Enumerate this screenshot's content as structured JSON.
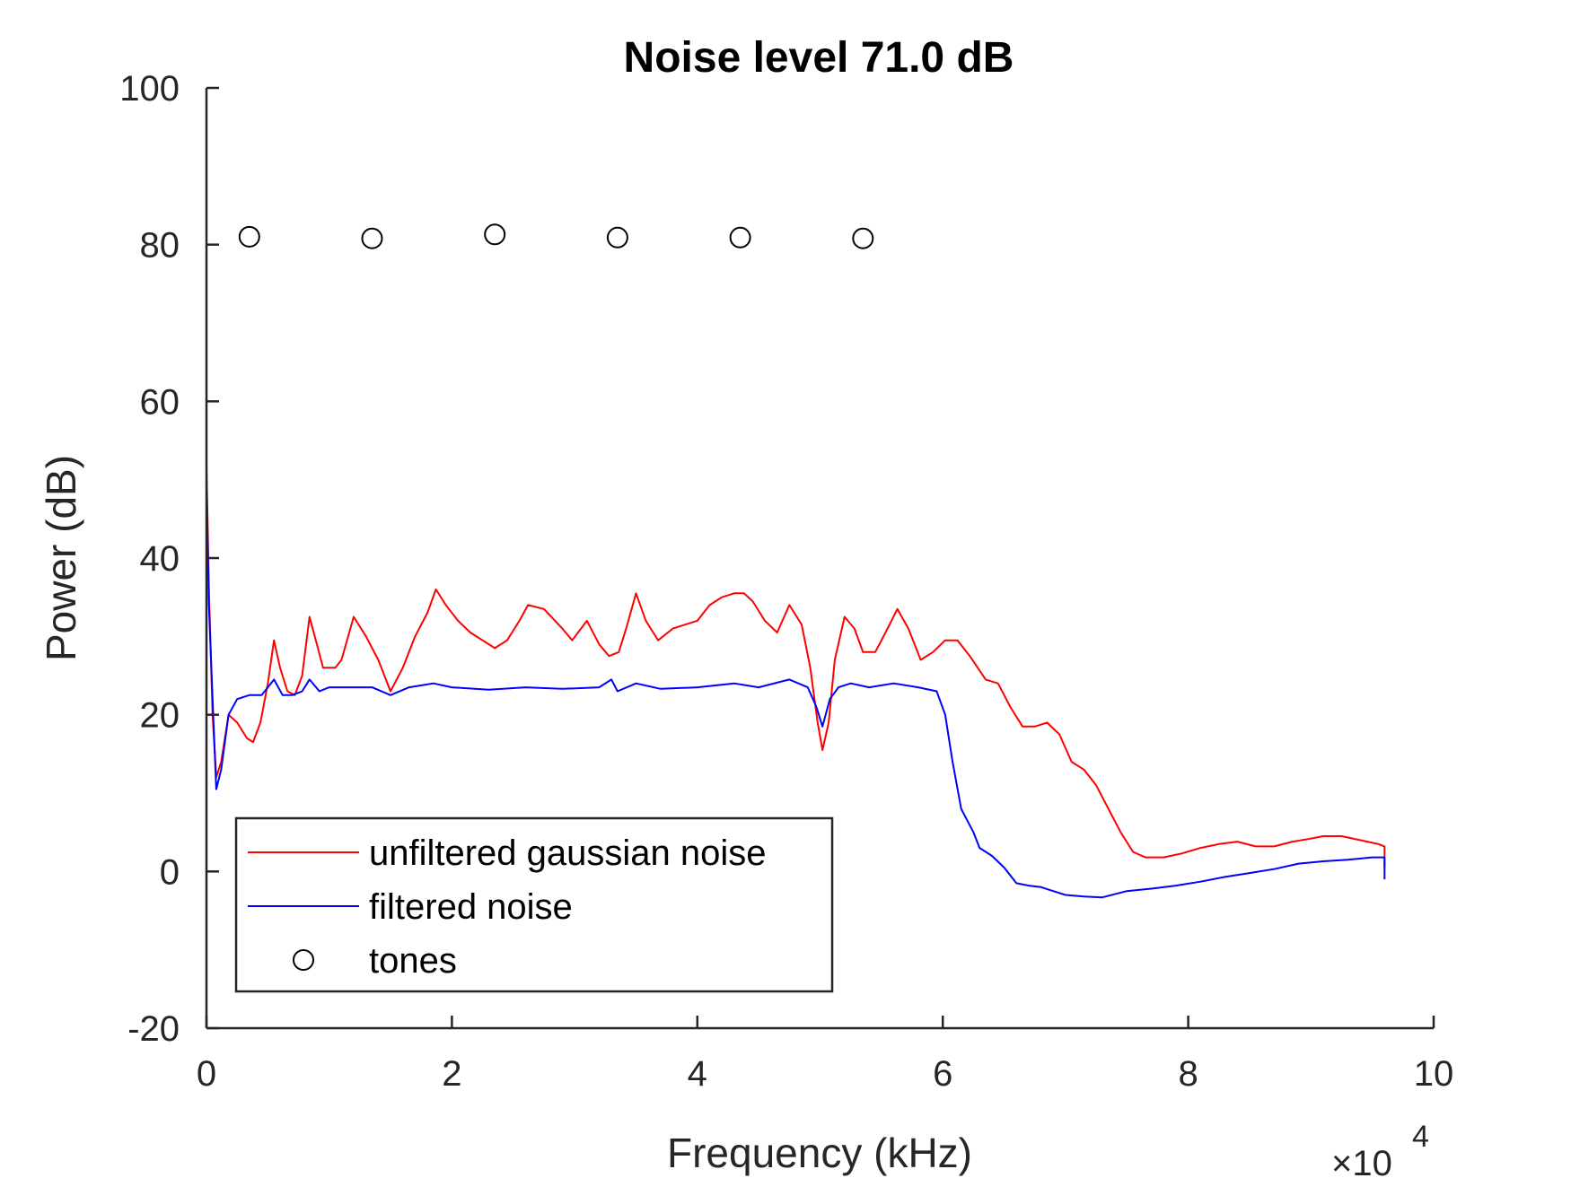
{
  "chart_data": {
    "type": "line",
    "title": "Noise level 71.0 dB",
    "xlabel": "Frequency (kHz)",
    "ylabel": "Power (dB)",
    "x_exponent_label": "×10",
    "x_exponent_power": "4",
    "xlim": [
      0,
      10
    ],
    "ylim": [
      -20,
      100
    ],
    "xticks": [
      0,
      2,
      4,
      6,
      8,
      10
    ],
    "xtick_labels": [
      "0",
      "2",
      "4",
      "6",
      "8",
      "10"
    ],
    "yticks": [
      -20,
      0,
      20,
      40,
      60,
      80,
      100
    ],
    "ytick_labels": [
      "-20",
      "0",
      "20",
      "40",
      "60",
      "80",
      "100"
    ],
    "grid": false,
    "legend_position": "bottom-left",
    "series": [
      {
        "name": "unfiltered gaussian noise",
        "color": "#ff0000",
        "style": "line",
        "points": [
          [
            0,
            52
          ],
          [
            0.02,
            36
          ],
          [
            0.05,
            20
          ],
          [
            0.08,
            12
          ],
          [
            0.12,
            14
          ],
          [
            0.18,
            20
          ],
          [
            0.25,
            19
          ],
          [
            0.33,
            17
          ],
          [
            0.38,
            16.5
          ],
          [
            0.44,
            19
          ],
          [
            0.5,
            24
          ],
          [
            0.55,
            29.5
          ],
          [
            0.6,
            26
          ],
          [
            0.66,
            23
          ],
          [
            0.72,
            22.5
          ],
          [
            0.78,
            25
          ],
          [
            0.84,
            32.5
          ],
          [
            0.9,
            29
          ],
          [
            0.95,
            26
          ],
          [
            1.05,
            26
          ],
          [
            1.1,
            27
          ],
          [
            1.2,
            32.5
          ],
          [
            1.3,
            30
          ],
          [
            1.4,
            27
          ],
          [
            1.5,
            23
          ],
          [
            1.6,
            26
          ],
          [
            1.7,
            30
          ],
          [
            1.8,
            33
          ],
          [
            1.87,
            36
          ],
          [
            1.95,
            34
          ],
          [
            2.05,
            32
          ],
          [
            2.15,
            30.5
          ],
          [
            2.35,
            28.5
          ],
          [
            2.45,
            29.5
          ],
          [
            2.55,
            32
          ],
          [
            2.62,
            34
          ],
          [
            2.75,
            33.5
          ],
          [
            2.9,
            31
          ],
          [
            2.98,
            29.5
          ],
          [
            3.1,
            32
          ],
          [
            3.2,
            29
          ],
          [
            3.28,
            27.5
          ],
          [
            3.36,
            28
          ],
          [
            3.42,
            31
          ],
          [
            3.5,
            35.5
          ],
          [
            3.58,
            32
          ],
          [
            3.68,
            29.5
          ],
          [
            3.8,
            31
          ],
          [
            3.9,
            31.5
          ],
          [
            4.0,
            32
          ],
          [
            4.1,
            34
          ],
          [
            4.2,
            35
          ],
          [
            4.3,
            35.5
          ],
          [
            4.38,
            35.5
          ],
          [
            4.45,
            34.5
          ],
          [
            4.55,
            32
          ],
          [
            4.65,
            30.5
          ],
          [
            4.75,
            34
          ],
          [
            4.85,
            31.5
          ],
          [
            4.92,
            26
          ],
          [
            4.98,
            19
          ],
          [
            5.02,
            15.5
          ],
          [
            5.07,
            19
          ],
          [
            5.12,
            27
          ],
          [
            5.2,
            32.5
          ],
          [
            5.28,
            31
          ],
          [
            5.35,
            28
          ],
          [
            5.45,
            28
          ],
          [
            5.55,
            31
          ],
          [
            5.63,
            33.5
          ],
          [
            5.72,
            31
          ],
          [
            5.82,
            27
          ],
          [
            5.92,
            28
          ],
          [
            6.02,
            29.5
          ],
          [
            6.12,
            29.5
          ],
          [
            6.22,
            27.5
          ],
          [
            6.35,
            24.5
          ],
          [
            6.45,
            24
          ],
          [
            6.55,
            21
          ],
          [
            6.65,
            18.5
          ],
          [
            6.75,
            18.5
          ],
          [
            6.85,
            19
          ],
          [
            6.95,
            17.5
          ],
          [
            7.05,
            14
          ],
          [
            7.15,
            13
          ],
          [
            7.25,
            11
          ],
          [
            7.35,
            8
          ],
          [
            7.45,
            5
          ],
          [
            7.55,
            2.5
          ],
          [
            7.65,
            1.8
          ],
          [
            7.8,
            1.8
          ],
          [
            7.95,
            2.3
          ],
          [
            8.1,
            3
          ],
          [
            8.25,
            3.5
          ],
          [
            8.4,
            3.8
          ],
          [
            8.55,
            3.2
          ],
          [
            8.7,
            3.2
          ],
          [
            8.85,
            3.8
          ],
          [
            9.0,
            4.2
          ],
          [
            9.1,
            4.5
          ],
          [
            9.25,
            4.5
          ],
          [
            9.4,
            4
          ],
          [
            9.55,
            3.5
          ],
          [
            9.6,
            3.2
          ],
          [
            9.6,
            0.5
          ]
        ]
      },
      {
        "name": "filtered noise",
        "color": "#0000ff",
        "style": "line",
        "points": [
          [
            0,
            50
          ],
          [
            0.02,
            34
          ],
          [
            0.05,
            22
          ],
          [
            0.08,
            10.5
          ],
          [
            0.12,
            13
          ],
          [
            0.18,
            20
          ],
          [
            0.25,
            22
          ],
          [
            0.35,
            22.5
          ],
          [
            0.45,
            22.5
          ],
          [
            0.55,
            24.5
          ],
          [
            0.62,
            22.5
          ],
          [
            0.7,
            22.5
          ],
          [
            0.78,
            23
          ],
          [
            0.84,
            24.5
          ],
          [
            0.92,
            23
          ],
          [
            1.0,
            23.5
          ],
          [
            1.2,
            23.5
          ],
          [
            1.35,
            23.5
          ],
          [
            1.5,
            22.5
          ],
          [
            1.65,
            23.5
          ],
          [
            1.85,
            24
          ],
          [
            2.0,
            23.5
          ],
          [
            2.3,
            23.2
          ],
          [
            2.6,
            23.5
          ],
          [
            2.9,
            23.3
          ],
          [
            3.2,
            23.5
          ],
          [
            3.3,
            24.5
          ],
          [
            3.35,
            23
          ],
          [
            3.5,
            24
          ],
          [
            3.7,
            23.3
          ],
          [
            4.0,
            23.5
          ],
          [
            4.3,
            24
          ],
          [
            4.5,
            23.5
          ],
          [
            4.75,
            24.5
          ],
          [
            4.9,
            23.5
          ],
          [
            4.97,
            21
          ],
          [
            5.02,
            18.5
          ],
          [
            5.08,
            22
          ],
          [
            5.15,
            23.5
          ],
          [
            5.25,
            24
          ],
          [
            5.4,
            23.5
          ],
          [
            5.6,
            24
          ],
          [
            5.8,
            23.5
          ],
          [
            5.95,
            23
          ],
          [
            6.02,
            20
          ],
          [
            6.08,
            14
          ],
          [
            6.15,
            8
          ],
          [
            6.2,
            6.5
          ],
          [
            6.25,
            5
          ],
          [
            6.3,
            3
          ],
          [
            6.4,
            2
          ],
          [
            6.5,
            0.5
          ],
          [
            6.6,
            -1.5
          ],
          [
            6.7,
            -1.8
          ],
          [
            6.8,
            -2
          ],
          [
            6.9,
            -2.5
          ],
          [
            7.0,
            -3
          ],
          [
            7.15,
            -3.2
          ],
          [
            7.3,
            -3.3
          ],
          [
            7.5,
            -2.5
          ],
          [
            7.7,
            -2.2
          ],
          [
            7.9,
            -1.8
          ],
          [
            8.1,
            -1.3
          ],
          [
            8.3,
            -0.7
          ],
          [
            8.5,
            -0.2
          ],
          [
            8.7,
            0.3
          ],
          [
            8.9,
            1
          ],
          [
            9.1,
            1.3
          ],
          [
            9.3,
            1.5
          ],
          [
            9.5,
            1.8
          ],
          [
            9.6,
            1.8
          ],
          [
            9.6,
            -1
          ]
        ]
      },
      {
        "name": "tones",
        "color": "#000000",
        "style": "marker-circle",
        "points": [
          [
            0.35,
            81
          ],
          [
            1.35,
            80.8
          ],
          [
            2.35,
            81.3
          ],
          [
            3.35,
            80.9
          ],
          [
            4.35,
            80.9
          ],
          [
            5.35,
            80.8
          ]
        ]
      }
    ]
  }
}
